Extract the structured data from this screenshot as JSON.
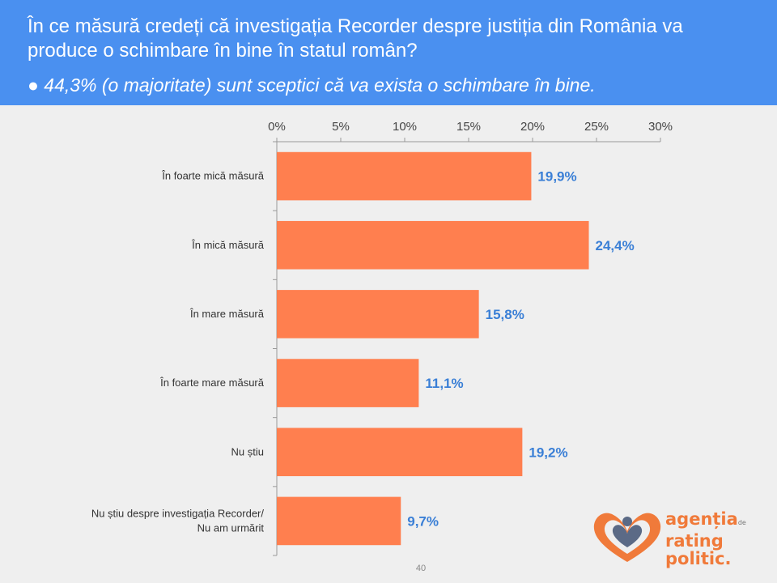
{
  "header": {
    "question": "În ce măsură credeți că investigația Recorder despre justiția din România va produce o schimbare în bine în statul român?",
    "summary": "● 44,3% (o majoritate) sunt sceptici că va exista o schimbare în bine."
  },
  "page_number": "40",
  "logo": {
    "line1": "agenția",
    "de": "de",
    "line2": "rating",
    "line3": "politic."
  },
  "colors": {
    "header_bg": "#4a90f0",
    "bar": "#ff7f4f",
    "value_label": "#3a7fd6"
  },
  "chart_data": {
    "type": "bar",
    "orientation": "horizontal",
    "xlim": [
      0,
      30
    ],
    "x_ticks": [
      "0%",
      "5%",
      "10%",
      "15%",
      "20%",
      "25%",
      "30%"
    ],
    "x_tick_values": [
      0,
      5,
      10,
      15,
      20,
      25,
      30
    ],
    "categories": [
      [
        "În foarte mică măsură"
      ],
      [
        "În mică măsură"
      ],
      [
        "În mare măsură"
      ],
      [
        "În foarte mare măsură"
      ],
      [
        "Nu știu"
      ],
      [
        "Nu știu despre investigația Recorder/",
        "Nu am urmărit"
      ]
    ],
    "values": [
      19.9,
      24.4,
      15.8,
      11.1,
      19.2,
      9.7
    ],
    "value_labels": [
      "19,9%",
      "24,4%",
      "15,8%",
      "11,1%",
      "19,2%",
      "9,7%"
    ]
  }
}
